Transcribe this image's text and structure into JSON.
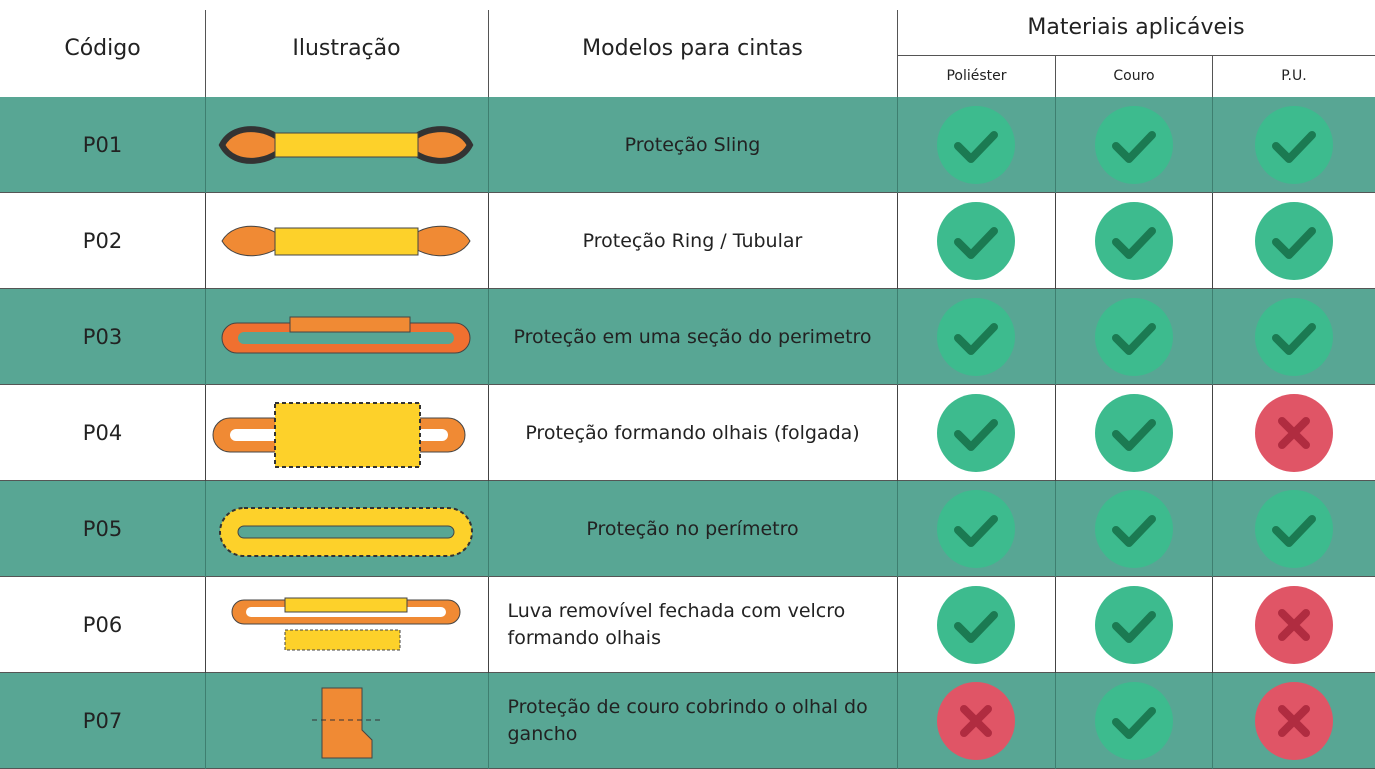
{
  "header": {
    "code": "Código",
    "illustration": "Ilustração",
    "models": "Modelos para cintas",
    "materials": "Materiais aplicáveis",
    "materials_columns": [
      "Poliéster",
      "Couro",
      "P.U."
    ]
  },
  "rows": [
    {
      "code": "P01",
      "model": "Proteção Sling",
      "applicable": [
        true,
        true,
        true
      ]
    },
    {
      "code": "P02",
      "model": "Proteção Ring / Tubular",
      "applicable": [
        true,
        true,
        true
      ]
    },
    {
      "code": "P03",
      "model": "Proteção em uma seção do perimetro",
      "applicable": [
        true,
        true,
        true
      ]
    },
    {
      "code": "P04",
      "model": "Proteção formando olhais (folgada)",
      "applicable": [
        true,
        true,
        false
      ]
    },
    {
      "code": "P05",
      "model": "Proteção no perímetro",
      "applicable": [
        true,
        true,
        true
      ]
    },
    {
      "code": "P06",
      "model": "Luva removível fechada com velcro formando olhais",
      "applicable": [
        true,
        true,
        false
      ]
    },
    {
      "code": "P07",
      "model": "Proteção de couro cobrindo o olhal do gancho",
      "applicable": [
        false,
        true,
        false
      ]
    }
  ]
}
